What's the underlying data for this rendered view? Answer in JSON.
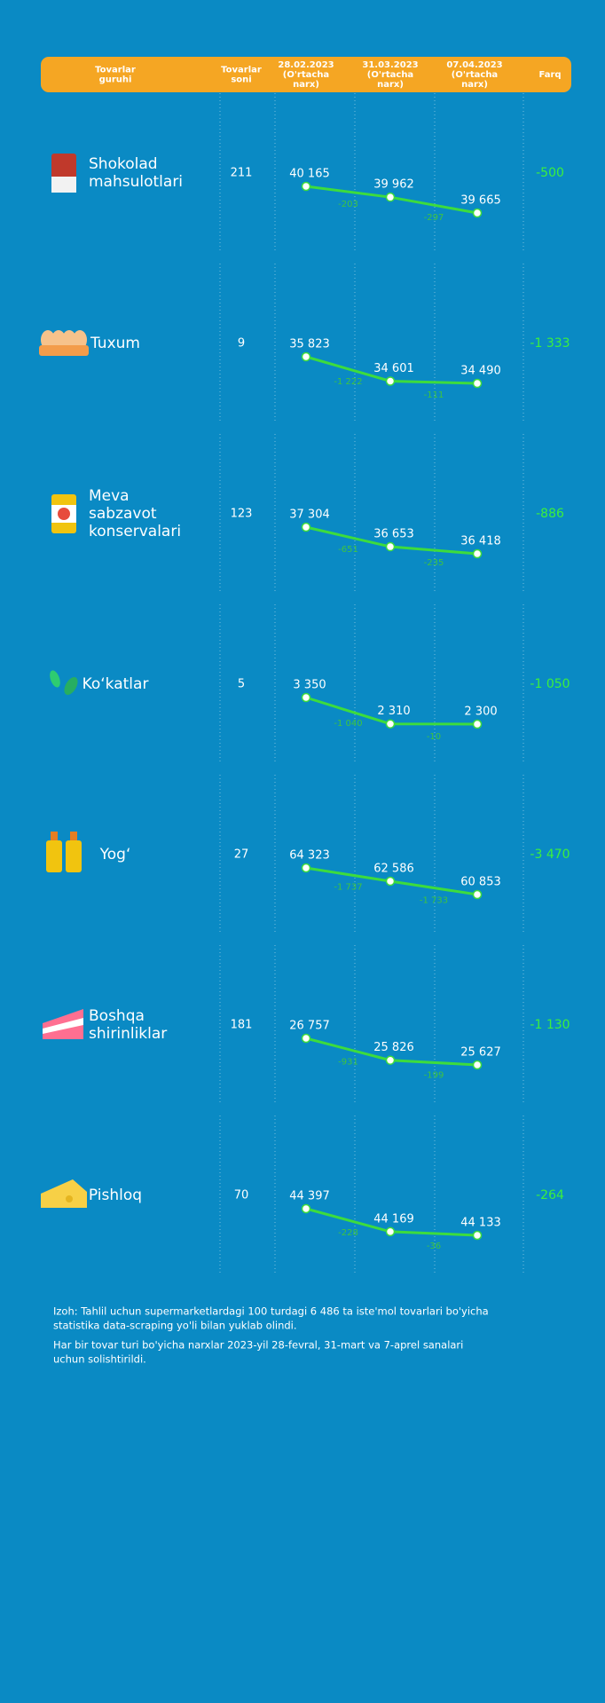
{
  "header": {
    "columns": [
      [
        "Tovarlar",
        "guruhi"
      ],
      [
        "Tovarlar",
        "soni"
      ],
      [
        "28.02.2023",
        "(O'rtacha",
        "narx)"
      ],
      [
        "31.03.2023",
        "(O'rtacha",
        "narx)"
      ],
      [
        "07.04.2023",
        "(O'rtacha",
        "narx)"
      ],
      [
        "Farq"
      ]
    ]
  },
  "rows": [
    {
      "name": [
        "Shokolad",
        "mahsulotlari"
      ],
      "count": "211",
      "prices": [
        40165,
        39962,
        39665
      ],
      "price_labels": [
        "40 165",
        "39 962",
        "39 665"
      ],
      "changes": [
        "-203",
        "-297"
      ],
      "diff": "-500"
    },
    {
      "name": [
        "Tuxum"
      ],
      "count": "9",
      "prices": [
        35823,
        34601,
        34490
      ],
      "price_labels": [
        "35 823",
        "34 601",
        "34 490"
      ],
      "changes": [
        "-1 222",
        "-111"
      ],
      "diff": "-1 333"
    },
    {
      "name": [
        "Meva",
        "sabzavot",
        "konservalari"
      ],
      "count": "123",
      "prices": [
        37304,
        36653,
        36418
      ],
      "price_labels": [
        "37 304",
        "36 653",
        "36 418"
      ],
      "changes": [
        "-651",
        "-235"
      ],
      "diff": "-886"
    },
    {
      "name": [
        "Ko‘katlar"
      ],
      "count": "5",
      "prices": [
        3350,
        2310,
        2300
      ],
      "price_labels": [
        "3 350",
        "2 310",
        "2 300"
      ],
      "changes": [
        "-1 040",
        "-10"
      ],
      "diff": "-1 050"
    },
    {
      "name": [
        "Yog‘"
      ],
      "count": "27",
      "prices": [
        64323,
        62586,
        60853
      ],
      "price_labels": [
        "64 323",
        "62 586",
        "60 853"
      ],
      "changes": [
        "-1 737",
        "-1 733"
      ],
      "diff": "-3 470"
    },
    {
      "name": [
        "Boshqa",
        "shirinliklar"
      ],
      "count": "181",
      "prices": [
        26757,
        25826,
        25627
      ],
      "price_labels": [
        "26 757",
        "25 826",
        "25 627"
      ],
      "changes": [
        "-931",
        "-199"
      ],
      "diff": "-1 130"
    },
    {
      "name": [
        "Pishloq"
      ],
      "count": "70",
      "prices": [
        44397,
        44169,
        44133
      ],
      "price_labels": [
        "44 397",
        "44 169",
        "44 133"
      ],
      "changes": [
        "-228",
        "-36"
      ],
      "diff": "-264"
    }
  ],
  "notes": [
    [
      "Izoh: Tahlil uchun supermarketlardagi 100 turdagi 6 486 ta iste'mol tovarlari bo'yicha",
      "statistika data-scraping yo'li bilan yuklab olindi."
    ],
    [
      "Har bir tovar turi bo'yicha narxlar 2023-yil 28-fevral, 31-mart va 7-aprel sanalari",
      "uchun solishtirildi."
    ]
  ]
}
